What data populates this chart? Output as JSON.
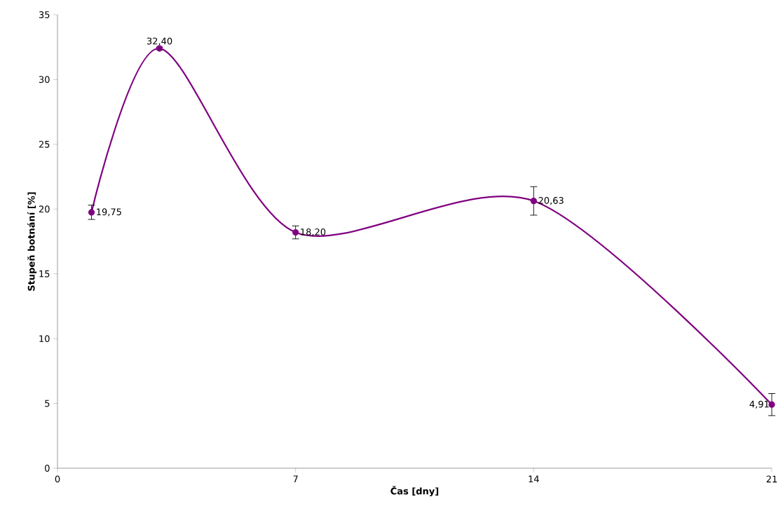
{
  "chart_data": {
    "type": "line",
    "xlabel": "Čas [dny]",
    "ylabel": "Stupeň botnání [%]",
    "x": [
      1,
      3,
      7,
      14,
      21
    ],
    "values": [
      19.75,
      32.4,
      18.2,
      20.63,
      4.91
    ],
    "errors": [
      0.55,
      0.1,
      0.5,
      1.1,
      0.85
    ],
    "value_labels": [
      "19,75",
      "32,40",
      "18,20",
      "20,63",
      "4,91"
    ],
    "color": "#800080",
    "marker": "circle",
    "xlim": [
      0,
      21
    ],
    "ylim": [
      0,
      35
    ],
    "xticks": [
      0,
      7,
      14,
      21
    ],
    "yticks": [
      0,
      5,
      10,
      15,
      20,
      25,
      30,
      35
    ]
  }
}
